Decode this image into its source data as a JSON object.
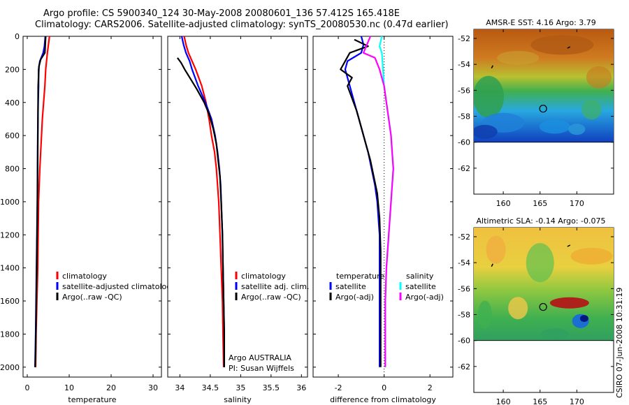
{
  "header": {
    "line1": "Argo profile: CS 5900340_124 30-May-2008 20080601_136 57.412S 165.418E",
    "line2": "Climatology: CARS2006. Satellite-adjusted climatology: synTS_20080530.nc (0.47d earlier)"
  },
  "footer_stamp": "CSIRO 07-Jun-2008 10:31:19",
  "colors": {
    "climatology": "#ff0000",
    "satellite": "#0000ff",
    "argo": "#000000",
    "satellite_sal": "#00ffff",
    "argo_sal": "#ff00ff"
  },
  "chart_data": [
    {
      "id": "temperature",
      "type": "line",
      "xlabel": "temperature",
      "ylabel": "",
      "xlim": [
        -1,
        32
      ],
      "ylim": [
        2060,
        0
      ],
      "xticks": [
        0,
        10,
        20,
        30
      ],
      "yticks": [
        0,
        200,
        400,
        600,
        800,
        1000,
        1200,
        1400,
        1600,
        1800,
        2000
      ],
      "legend": {
        "position": "lower-right",
        "entries": [
          {
            "label": "climatology",
            "color": "#ff0000"
          },
          {
            "label": "satellite-adjusted climatology",
            "color": "#0000ff"
          },
          {
            "label": "Argo(..raw -QC)",
            "color": "#000000"
          }
        ]
      },
      "series": [
        {
          "name": "climatology",
          "color": "#ff0000",
          "points": [
            [
              5.3,
              0
            ],
            [
              5.0,
              60
            ],
            [
              4.8,
              100
            ],
            [
              4.6,
              150
            ],
            [
              4.4,
              200
            ],
            [
              4.2,
              300
            ],
            [
              3.9,
              400
            ],
            [
              3.6,
              500
            ],
            [
              3.4,
              600
            ],
            [
              3.2,
              700
            ],
            [
              3.0,
              800
            ],
            [
              2.85,
              900
            ],
            [
              2.7,
              1000
            ],
            [
              2.6,
              1200
            ],
            [
              2.5,
              1400
            ],
            [
              2.3,
              1600
            ],
            [
              2.1,
              1800
            ],
            [
              2.0,
              2000
            ]
          ]
        },
        {
          "name": "satellite-adjusted climatology",
          "color": "#0000ff",
          "points": [
            [
              4.3,
              0
            ],
            [
              4.1,
              60
            ],
            [
              3.8,
              100
            ],
            [
              3.0,
              150
            ],
            [
              2.7,
              200
            ],
            [
              2.7,
              300
            ],
            [
              2.6,
              400
            ],
            [
              2.5,
              600
            ],
            [
              2.45,
              800
            ],
            [
              2.4,
              1000
            ],
            [
              2.3,
              1200
            ],
            [
              2.2,
              1400
            ],
            [
              2.1,
              1600
            ],
            [
              2.0,
              1800
            ],
            [
              1.85,
              2000
            ]
          ]
        },
        {
          "name": "Argo(..raw -QC)",
          "color": "#000000",
          "points": [
            [
              4.4,
              0
            ],
            [
              4.3,
              50
            ],
            [
              4.2,
              100
            ],
            [
              3.2,
              140
            ],
            [
              2.8,
              180
            ],
            [
              2.6,
              300
            ],
            [
              2.55,
              500
            ],
            [
              2.5,
              700
            ],
            [
              2.45,
              900
            ],
            [
              2.4,
              1100
            ],
            [
              2.3,
              1300
            ],
            [
              2.2,
              1500
            ],
            [
              2.1,
              1700
            ],
            [
              2.0,
              1900
            ],
            [
              1.9,
              2000
            ]
          ]
        }
      ]
    },
    {
      "id": "salinity",
      "type": "line",
      "xlabel": "salinity",
      "ylabel": "",
      "xlim": [
        33.8,
        36.1
      ],
      "ylim": [
        2060,
        0
      ],
      "xticks": [
        34,
        34.5,
        35,
        35.5,
        36
      ],
      "yticks": [
        0,
        200,
        400,
        600,
        800,
        1000,
        1200,
        1400,
        1600,
        1800,
        2000
      ],
      "legend": {
        "position": "lower-right",
        "entries": [
          {
            "label": "climatology",
            "color": "#ff0000"
          },
          {
            "label": "satellite adj. clim.",
            "color": "#0000ff"
          },
          {
            "label": "Argo(..raw -QC)",
            "color": "#000000"
          }
        ]
      },
      "annotations": [
        "Argo AUSTRALIA",
        "PI: Susan Wijffels"
      ],
      "series": [
        {
          "name": "climatology",
          "color": "#ff0000",
          "points": [
            [
              34.07,
              0
            ],
            [
              34.1,
              50
            ],
            [
              34.14,
              100
            ],
            [
              34.2,
              150
            ],
            [
              34.26,
              200
            ],
            [
              34.36,
              300
            ],
            [
              34.43,
              400
            ],
            [
              34.48,
              500
            ],
            [
              34.52,
              600
            ],
            [
              34.57,
              700
            ],
            [
              34.6,
              800
            ],
            [
              34.62,
              900
            ],
            [
              34.64,
              1000
            ],
            [
              34.66,
              1200
            ],
            [
              34.68,
              1400
            ],
            [
              34.7,
              1600
            ],
            [
              34.71,
              1800
            ],
            [
              34.72,
              2000
            ]
          ]
        },
        {
          "name": "satellite adj. clim.",
          "color": "#0000ff",
          "points": [
            [
              34.03,
              0
            ],
            [
              34.06,
              50
            ],
            [
              34.1,
              100
            ],
            [
              34.16,
              150
            ],
            [
              34.2,
              200
            ],
            [
              34.3,
              300
            ],
            [
              34.42,
              400
            ],
            [
              34.52,
              500
            ],
            [
              34.58,
              600
            ],
            [
              34.62,
              700
            ],
            [
              34.65,
              800
            ],
            [
              34.67,
              900
            ],
            [
              34.68,
              1000
            ],
            [
              34.7,
              1200
            ],
            [
              34.71,
              1400
            ],
            [
              34.72,
              1600
            ],
            [
              34.73,
              1800
            ],
            [
              34.73,
              2000
            ]
          ]
        },
        {
          "name": "Argo(..raw -QC)",
          "color": "#000000",
          "points": [
            [
              33.96,
              130
            ],
            [
              34.02,
              160
            ],
            [
              34.08,
              200
            ],
            [
              34.18,
              260
            ],
            [
              34.28,
              320
            ],
            [
              34.4,
              400
            ],
            [
              34.48,
              470
            ],
            [
              34.55,
              560
            ],
            [
              34.6,
              650
            ],
            [
              34.63,
              750
            ],
            [
              34.66,
              850
            ],
            [
              34.68,
              1000
            ],
            [
              34.7,
              1200
            ],
            [
              34.71,
              1400
            ],
            [
              34.72,
              1600
            ],
            [
              34.73,
              1800
            ],
            [
              34.73,
              2000
            ]
          ]
        }
      ]
    },
    {
      "id": "difference",
      "type": "line",
      "xlabel": "difference from climatology",
      "ylabel": "",
      "xlim": [
        -3.1,
        3.0
      ],
      "ylim": [
        2060,
        0
      ],
      "xticks": [
        -2,
        0,
        2
      ],
      "yticks": [
        0,
        200,
        400,
        600,
        800,
        1000,
        1200,
        1400,
        1600,
        1800,
        2000
      ],
      "legend": {
        "position": "lower",
        "entries": [
          {
            "label": "temperature",
            "color": ""
          },
          {
            "label": "satellite",
            "color": "#0000ff"
          },
          {
            "label": "Argo(-adj)",
            "color": "#000000"
          },
          {
            "label": "salinity",
            "color": ""
          },
          {
            "label": "satellite",
            "color": "#00ffff"
          },
          {
            "label": "Argo(-adj)",
            "color": "#ff00ff"
          }
        ]
      },
      "series": [
        {
          "name": "temperature satellite",
          "color": "#0000ff",
          "points": [
            [
              -1.0,
              0
            ],
            [
              -0.9,
              50
            ],
            [
              -1.0,
              100
            ],
            [
              -1.6,
              150
            ],
            [
              -1.7,
              200
            ],
            [
              -1.5,
              300
            ],
            [
              -1.3,
              400
            ],
            [
              -1.1,
              500
            ],
            [
              -0.9,
              600
            ],
            [
              -0.7,
              700
            ],
            [
              -0.55,
              800
            ],
            [
              -0.4,
              900
            ],
            [
              -0.3,
              1000
            ],
            [
              -0.2,
              1200
            ],
            [
              -0.2,
              1400
            ],
            [
              -0.2,
              1600
            ],
            [
              -0.2,
              1800
            ],
            [
              -0.2,
              2000
            ]
          ]
        },
        {
          "name": "temperature Argo(-adj)",
          "color": "#000000",
          "points": [
            [
              -1.3,
              20
            ],
            [
              -0.7,
              60
            ],
            [
              -1.5,
              100
            ],
            [
              -1.9,
              200
            ],
            [
              -1.4,
              250
            ],
            [
              -1.6,
              300
            ],
            [
              -1.2,
              450
            ],
            [
              -1.0,
              550
            ],
            [
              -0.8,
              650
            ],
            [
              -0.6,
              750
            ],
            [
              -0.45,
              850
            ],
            [
              -0.3,
              950
            ],
            [
              -0.2,
              1100
            ],
            [
              -0.15,
              1300
            ],
            [
              -0.15,
              1500
            ],
            [
              -0.15,
              1700
            ],
            [
              -0.15,
              1900
            ],
            [
              -0.15,
              2000
            ]
          ]
        },
        {
          "name": "salinity satellite",
          "color": "#00ffff",
          "points": [
            [
              -0.1,
              0
            ],
            [
              -0.2,
              60
            ],
            [
              -0.1,
              100
            ],
            [
              -0.05,
              200
            ],
            [
              0.0,
              300
            ],
            [
              0.1,
              400
            ],
            [
              0.2,
              500
            ],
            [
              0.3,
              600
            ],
            [
              0.35,
              700
            ],
            [
              0.4,
              800
            ],
            [
              0.35,
              900
            ],
            [
              0.3,
              1000
            ],
            [
              0.2,
              1200
            ],
            [
              0.1,
              1400
            ],
            [
              0.05,
              1600
            ],
            [
              0.05,
              1800
            ],
            [
              0.05,
              2000
            ]
          ]
        },
        {
          "name": "salinity Argo(-adj)",
          "color": "#ff00ff",
          "points": [
            [
              -0.6,
              0
            ],
            [
              -0.9,
              100
            ],
            [
              -0.4,
              130
            ],
            [
              -0.2,
              200
            ],
            [
              0.0,
              300
            ],
            [
              0.1,
              400
            ],
            [
              0.2,
              500
            ],
            [
              0.3,
              600
            ],
            [
              0.35,
              700
            ],
            [
              0.4,
              800
            ],
            [
              0.35,
              900
            ],
            [
              0.3,
              1000
            ],
            [
              0.2,
              1200
            ],
            [
              0.1,
              1400
            ],
            [
              0.05,
              1600
            ],
            [
              0.05,
              1800
            ],
            [
              0.05,
              2000
            ]
          ]
        }
      ]
    },
    {
      "id": "sst-map",
      "type": "heatmap",
      "title": "AMSR-E SST: 4.16 Argo: 3.79",
      "xlim": [
        156,
        175
      ],
      "ylim": [
        -64,
        -51.3
      ],
      "xticks": [
        160,
        165,
        170
      ],
      "yticks": [
        -52,
        -54,
        -56,
        -58,
        -60,
        -62
      ],
      "data_extent_lat": [
        -60,
        -51.3
      ],
      "float_position": [
        165.418,
        -57.412
      ]
    },
    {
      "id": "sla-map",
      "type": "heatmap",
      "title": "Altimetric SLA: -0.14 Argo: -0.075",
      "xlim": [
        156,
        175
      ],
      "ylim": [
        -64,
        -51.3
      ],
      "xticks": [
        160,
        165,
        170
      ],
      "yticks": [
        -52,
        -54,
        -56,
        -58,
        -60,
        -62
      ],
      "data_extent_lat": [
        -60,
        -51.3
      ],
      "float_position": [
        165.418,
        -57.412
      ]
    }
  ]
}
